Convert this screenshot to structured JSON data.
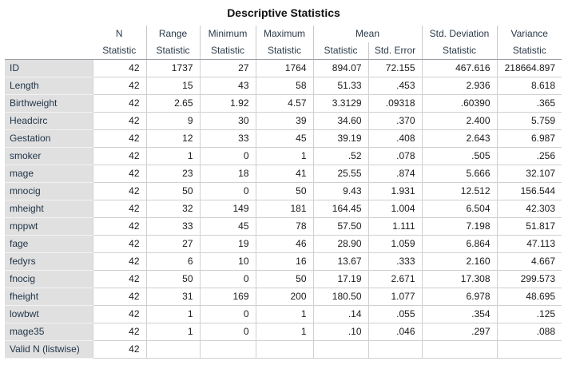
{
  "title": "Descriptive Statistics",
  "header": {
    "row1": {
      "n": "N",
      "range": "Range",
      "minimum": "Minimum",
      "maximum": "Maximum",
      "mean": "Mean",
      "std_deviation": "Std. Deviation",
      "variance": "Variance"
    },
    "row2": [
      "Statistic",
      "Statistic",
      "Statistic",
      "Statistic",
      "Statistic",
      "Std. Error",
      "Statistic",
      "Statistic"
    ]
  },
  "rows": [
    {
      "label": "ID",
      "cells": [
        "42",
        "1737",
        "27",
        "1764",
        "894.07",
        "72.155",
        "467.616",
        "218664.897"
      ]
    },
    {
      "label": "Length",
      "cells": [
        "42",
        "15",
        "43",
        "58",
        "51.33",
        ".453",
        "2.936",
        "8.618"
      ]
    },
    {
      "label": "Birthweight",
      "cells": [
        "42",
        "2.65",
        "1.92",
        "4.57",
        "3.3129",
        ".09318",
        ".60390",
        ".365"
      ]
    },
    {
      "label": "Headcirc",
      "cells": [
        "42",
        "9",
        "30",
        "39",
        "34.60",
        ".370",
        "2.400",
        "5.759"
      ]
    },
    {
      "label": "Gestation",
      "cells": [
        "42",
        "12",
        "33",
        "45",
        "39.19",
        ".408",
        "2.643",
        "6.987"
      ]
    },
    {
      "label": "smoker",
      "cells": [
        "42",
        "1",
        "0",
        "1",
        ".52",
        ".078",
        ".505",
        ".256"
      ]
    },
    {
      "label": "mage",
      "cells": [
        "42",
        "23",
        "18",
        "41",
        "25.55",
        ".874",
        "5.666",
        "32.107"
      ]
    },
    {
      "label": "mnocig",
      "cells": [
        "42",
        "50",
        "0",
        "50",
        "9.43",
        "1.931",
        "12.512",
        "156.544"
      ]
    },
    {
      "label": "mheight",
      "cells": [
        "42",
        "32",
        "149",
        "181",
        "164.45",
        "1.004",
        "6.504",
        "42.303"
      ]
    },
    {
      "label": "mppwt",
      "cells": [
        "42",
        "33",
        "45",
        "78",
        "57.50",
        "1.111",
        "7.198",
        "51.817"
      ]
    },
    {
      "label": "fage",
      "cells": [
        "42",
        "27",
        "19",
        "46",
        "28.90",
        "1.059",
        "6.864",
        "47.113"
      ]
    },
    {
      "label": "fedyrs",
      "cells": [
        "42",
        "6",
        "10",
        "16",
        "13.67",
        ".333",
        "2.160",
        "4.667"
      ]
    },
    {
      "label": "fnocig",
      "cells": [
        "42",
        "50",
        "0",
        "50",
        "17.19",
        "2.671",
        "17.308",
        "299.573"
      ]
    },
    {
      "label": "fheight",
      "cells": [
        "42",
        "31",
        "169",
        "200",
        "180.50",
        "1.077",
        "6.978",
        "48.695"
      ]
    },
    {
      "label": "lowbwt",
      "cells": [
        "42",
        "1",
        "0",
        "1",
        ".14",
        ".055",
        ".354",
        ".125"
      ]
    },
    {
      "label": "mage35",
      "cells": [
        "42",
        "1",
        "0",
        "1",
        ".10",
        ".046",
        ".297",
        ".088"
      ]
    },
    {
      "label": "Valid N (listwise)",
      "cells": [
        "42",
        "",
        "",
        "",
        "",
        "",
        "",
        ""
      ]
    }
  ]
}
